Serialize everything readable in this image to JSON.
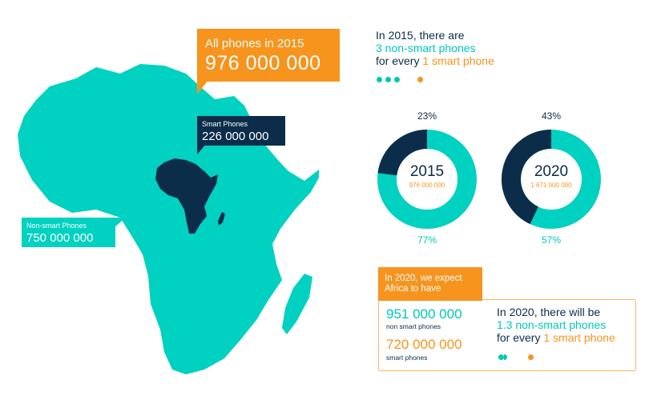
{
  "colors": {
    "teal": "#00d1c1",
    "navy": "#0b2d4a",
    "orange": "#f7941d"
  },
  "callouts": {
    "all_phones": {
      "label": "All phones in 2015",
      "value": "976 000 000"
    },
    "smart_phones": {
      "label": "Smart Phones",
      "value": "226 000 000"
    },
    "non_smart_phones": {
      "label": "Non-smart Phones",
      "value": "750 000 000"
    }
  },
  "headline_2015": {
    "line1": "In 2015, there are",
    "line2": "3 non-smart phones",
    "line3_prefix": "for every ",
    "line3_highlight": "1 smart phone"
  },
  "ratio_dots_2015": {
    "teal_count": 3,
    "orange_count": 1
  },
  "donuts": [
    {
      "year": "2015",
      "total": "976 000 000",
      "smart_pct_label": "23%",
      "non_smart_pct_label": "77%",
      "smart_fraction": 0.23
    },
    {
      "year": "2020",
      "total": "1 671 000 000",
      "smart_pct_label": "43%",
      "non_smart_pct_label": "57%",
      "smart_fraction": 0.43
    }
  ],
  "expect_2020": {
    "label": "In 2020, we expect Africa to have",
    "non_smart_value": "951 000 000",
    "non_smart_label": "non smart phones",
    "smart_value": "720 000 000",
    "smart_label": "smart phones",
    "headline_line1": "In 2020, there will be",
    "headline_line2": "1.3 non-smart phones",
    "headline_line3_prefix": "for every ",
    "headline_line3_highlight": "1 smart phone"
  }
}
